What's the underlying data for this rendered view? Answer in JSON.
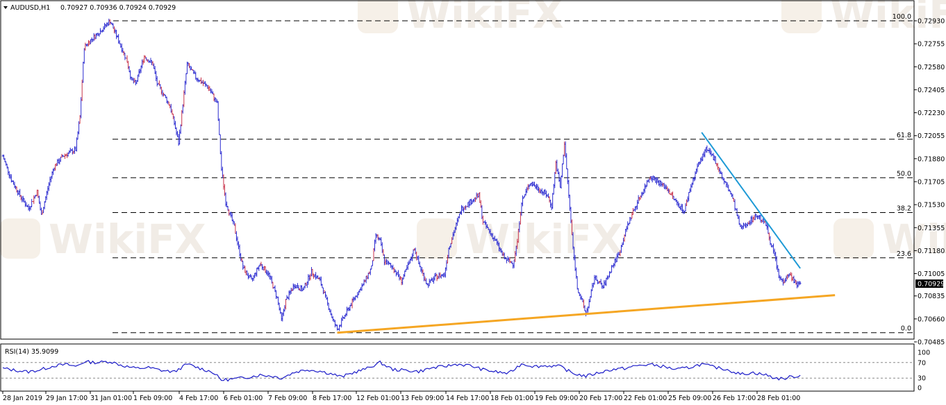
{
  "header": {
    "symbol": "AUDUSD,H1",
    "ohlc": "0.70927 0.70936 0.70924 0.70929"
  },
  "watermark": {
    "text": "WikiFX",
    "color": "#f1ece6"
  },
  "colors": {
    "candle": "#2b2bd0",
    "candle_accent": "#c8324a",
    "trend_up": "#f5a623",
    "trend_down": "#1e9ad6",
    "rsi": "#1a1ac8",
    "fib_line": "#000000",
    "price_tag_bg": "#000000"
  },
  "chart_data": [
    {
      "type": "candlestick",
      "title": "AUDUSD,H1",
      "y_ticks": [
        "0.72930",
        "0.72755",
        "0.72580",
        "0.72405",
        "0.72230",
        "0.72055",
        "0.71880",
        "0.71705",
        "0.71530",
        "0.71355",
        "0.71180",
        "0.71005",
        "0.70835",
        "0.70660",
        "0.70485"
      ],
      "ylim": [
        0.70485,
        0.7293
      ],
      "x_ticks": [
        "28 Jan 2019",
        "29 Jan 17:00",
        "31 Jan 01:00",
        "1 Feb 09:00",
        "4 Feb 17:00",
        "6 Feb 01:00",
        "7 Feb 09:00",
        "8 Feb 17:00",
        "12 Feb 01:00",
        "13 Feb 09:00",
        "14 Feb 17:00",
        "18 Feb 01:00",
        "19 Feb 09:00",
        "20 Feb 17:00",
        "22 Feb 01:00",
        "25 Feb 09:00",
        "26 Feb 17:00",
        "28 Feb 01:00"
      ],
      "current_price": "0.70929",
      "price_path": [
        [
          0,
          0.719
        ],
        [
          2,
          0.7172
        ],
        [
          4,
          0.716
        ],
        [
          6,
          0.715
        ],
        [
          8,
          0.7163
        ],
        [
          9,
          0.7145
        ],
        [
          11,
          0.7172
        ],
        [
          12,
          0.7182
        ],
        [
          14,
          0.719
        ],
        [
          17,
          0.7195
        ],
        [
          18,
          0.722
        ],
        [
          19,
          0.7273
        ],
        [
          21,
          0.728
        ],
        [
          23,
          0.7286
        ],
        [
          25,
          0.7293
        ],
        [
          27,
          0.7278
        ],
        [
          29,
          0.7262
        ],
        [
          30,
          0.7248
        ],
        [
          31,
          0.7245
        ],
        [
          33,
          0.7266
        ],
        [
          35,
          0.726
        ],
        [
          36,
          0.7245
        ],
        [
          37,
          0.724
        ],
        [
          39,
          0.7228
        ],
        [
          40,
          0.7215
        ],
        [
          41,
          0.72
        ],
        [
          43,
          0.726
        ],
        [
          45,
          0.725
        ],
        [
          48,
          0.7242
        ],
        [
          50,
          0.723
        ],
        [
          51,
          0.718
        ],
        [
          52,
          0.7155
        ],
        [
          54,
          0.7136
        ],
        [
          55,
          0.712
        ],
        [
          56,
          0.7105
        ],
        [
          58,
          0.7095
        ],
        [
          60,
          0.7108
        ],
        [
          62,
          0.71
        ],
        [
          64,
          0.7082
        ],
        [
          65,
          0.7065
        ],
        [
          66,
          0.708
        ],
        [
          68,
          0.7092
        ],
        [
          70,
          0.7088
        ],
        [
          72,
          0.7102
        ],
        [
          74,
          0.7095
        ],
        [
          76,
          0.7075
        ],
        [
          77,
          0.7065
        ],
        [
          78,
          0.7058
        ],
        [
          80,
          0.707
        ],
        [
          82,
          0.7082
        ],
        [
          84,
          0.7092
        ],
        [
          86,
          0.7105
        ],
        [
          87,
          0.713
        ],
        [
          88,
          0.7125
        ],
        [
          89,
          0.711
        ],
        [
          91,
          0.7105
        ],
        [
          93,
          0.7095
        ],
        [
          95,
          0.711
        ],
        [
          96,
          0.712
        ],
        [
          97,
          0.7108
        ],
        [
          99,
          0.7092
        ],
        [
          101,
          0.7098
        ],
        [
          103,
          0.71
        ],
        [
          104,
          0.712
        ],
        [
          106,
          0.714
        ],
        [
          107,
          0.715
        ],
        [
          109,
          0.7155
        ],
        [
          111,
          0.716
        ],
        [
          112,
          0.714
        ],
        [
          114,
          0.713
        ],
        [
          115,
          0.7125
        ],
        [
          117,
          0.7112
        ],
        [
          119,
          0.7108
        ],
        [
          120,
          0.7125
        ],
        [
          121,
          0.7155
        ],
        [
          123,
          0.717
        ],
        [
          125,
          0.7165
        ],
        [
          127,
          0.716
        ],
        [
          128,
          0.7152
        ],
        [
          129,
          0.7185
        ],
        [
          130,
          0.7166
        ],
        [
          131,
          0.72
        ],
        [
          132,
          0.716
        ],
        [
          133,
          0.712
        ],
        [
          134,
          0.709
        ],
        [
          135,
          0.708
        ],
        [
          136,
          0.707
        ],
        [
          137,
          0.7082
        ],
        [
          138,
          0.7098
        ],
        [
          140,
          0.709
        ],
        [
          142,
          0.7105
        ],
        [
          144,
          0.7118
        ],
        [
          145,
          0.713
        ],
        [
          146,
          0.714
        ],
        [
          148,
          0.7155
        ],
        [
          150,
          0.7168
        ],
        [
          151,
          0.7175
        ],
        [
          153,
          0.717
        ],
        [
          155,
          0.7165
        ],
        [
          156,
          0.716
        ],
        [
          157,
          0.7155
        ],
        [
          159,
          0.7148
        ],
        [
          160,
          0.7162
        ],
        [
          162,
          0.7182
        ],
        [
          164,
          0.7195
        ],
        [
          166,
          0.7188
        ],
        [
          167,
          0.718
        ],
        [
          168,
          0.7172
        ],
        [
          170,
          0.716
        ],
        [
          171,
          0.7148
        ],
        [
          172,
          0.7135
        ],
        [
          174,
          0.714
        ],
        [
          176,
          0.7145
        ],
        [
          178,
          0.7138
        ],
        [
          179,
          0.7125
        ],
        [
          180,
          0.7115
        ],
        [
          181,
          0.7098
        ],
        [
          182,
          0.7094
        ],
        [
          183,
          0.71
        ],
        [
          184,
          0.7098
        ],
        [
          185,
          0.7092
        ],
        [
          186,
          0.7093
        ]
      ]
    },
    {
      "type": "fibonacci-retracement",
      "levels": [
        "100.0",
        "61.8",
        "50.0",
        "38.2",
        "23.6",
        "0.0"
      ],
      "level_values": [
        0.7293,
        0.72028,
        0.71735,
        0.7147,
        0.71125,
        0.70555
      ]
    },
    {
      "type": "trendlines",
      "lines": [
        {
          "color": "#f5a623",
          "from": [
            78,
            0.70555
          ],
          "to": [
            186,
            0.7083
          ]
        },
        {
          "color": "#1e9ad6",
          "from": [
            163,
            0.7208
          ],
          "to": [
            186,
            0.71045
          ]
        }
      ]
    },
    {
      "type": "line",
      "title": "RSI(14) 35.9099",
      "y_ticks": [
        "100",
        "70",
        "30",
        "0"
      ],
      "levels": [
        70,
        30
      ],
      "ylim": [
        0,
        100
      ],
      "rsi_path": [
        [
          0,
          55
        ],
        [
          3,
          50
        ],
        [
          6,
          46
        ],
        [
          9,
          52
        ],
        [
          12,
          62
        ],
        [
          15,
          65
        ],
        [
          17,
          60
        ],
        [
          19,
          72
        ],
        [
          22,
          70
        ],
        [
          25,
          73
        ],
        [
          28,
          62
        ],
        [
          31,
          55
        ],
        [
          34,
          57
        ],
        [
          37,
          50
        ],
        [
          40,
          46
        ],
        [
          43,
          66
        ],
        [
          46,
          55
        ],
        [
          49,
          45
        ],
        [
          51,
          25
        ],
        [
          54,
          28
        ],
        [
          57,
          32
        ],
        [
          60,
          38
        ],
        [
          63,
          35
        ],
        [
          65,
          30
        ],
        [
          68,
          45
        ],
        [
          71,
          52
        ],
        [
          74,
          48
        ],
        [
          77,
          40
        ],
        [
          79,
          33
        ],
        [
          82,
          45
        ],
        [
          85,
          55
        ],
        [
          88,
          70
        ],
        [
          91,
          52
        ],
        [
          94,
          50
        ],
        [
          97,
          47
        ],
        [
          100,
          56
        ],
        [
          103,
          60
        ],
        [
          106,
          66
        ],
        [
          109,
          62
        ],
        [
          112,
          52
        ],
        [
          115,
          46
        ],
        [
          118,
          42
        ],
        [
          121,
          67
        ],
        [
          124,
          60
        ],
        [
          127,
          62
        ],
        [
          130,
          60
        ],
        [
          133,
          42
        ],
        [
          136,
          35
        ],
        [
          139,
          44
        ],
        [
          142,
          52
        ],
        [
          145,
          55
        ],
        [
          148,
          62
        ],
        [
          151,
          65
        ],
        [
          154,
          60
        ],
        [
          157,
          52
        ],
        [
          160,
          57
        ],
        [
          163,
          66
        ],
        [
          166,
          58
        ],
        [
          169,
          52
        ],
        [
          172,
          40
        ],
        [
          175,
          44
        ],
        [
          178,
          38
        ],
        [
          180,
          30
        ],
        [
          182,
          28
        ],
        [
          184,
          34
        ],
        [
          186,
          36
        ]
      ]
    }
  ]
}
